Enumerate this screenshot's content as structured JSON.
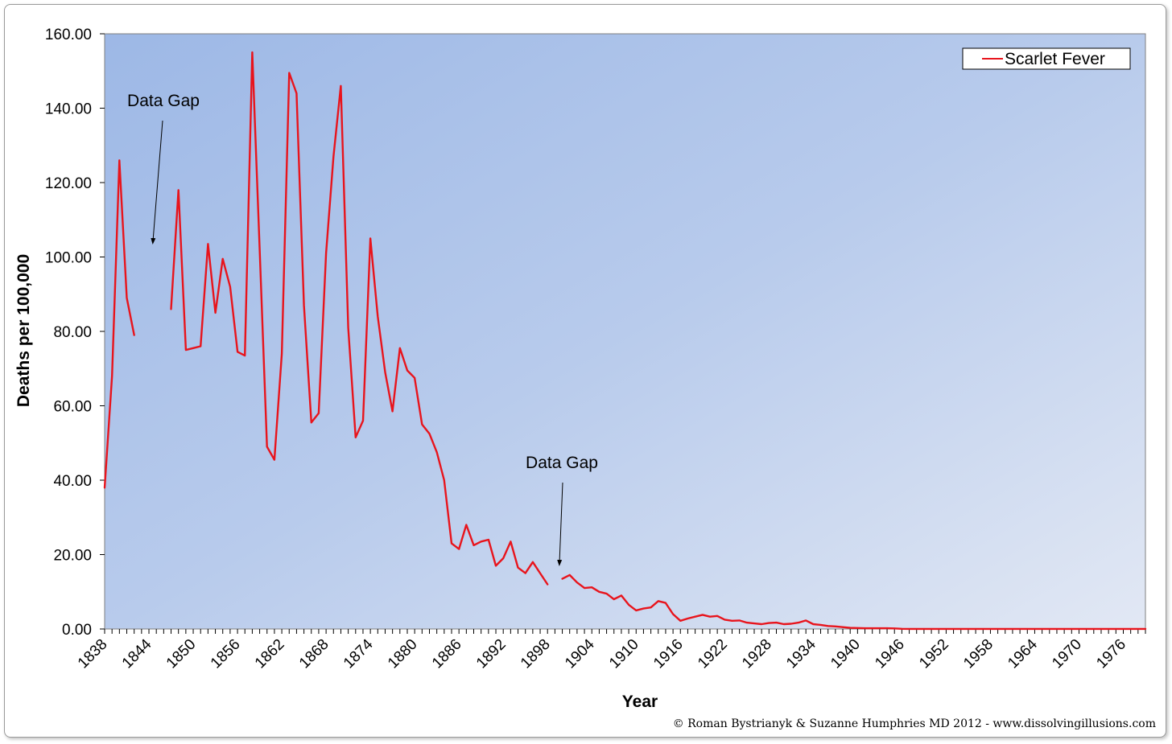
{
  "chart_data": {
    "type": "line",
    "title": "",
    "xlabel": "Year",
    "ylabel": "Deaths per 100,000",
    "ylim": [
      0,
      160
    ],
    "xlim": [
      1838,
      1979
    ],
    "grid": false,
    "legend_position": "top-right",
    "y_ticks": [
      "0.00",
      "20.00",
      "40.00",
      "60.00",
      "80.00",
      "100.00",
      "120.00",
      "140.00",
      "160.00"
    ],
    "x_ticks": [
      "1838",
      "1844",
      "1850",
      "1856",
      "1862",
      "1868",
      "1874",
      "1880",
      "1886",
      "1892",
      "1898",
      "1904",
      "1910",
      "1916",
      "1922",
      "1928",
      "1934",
      "1940",
      "1946",
      "1952",
      "1958",
      "1964",
      "1970",
      "1976"
    ],
    "series": [
      {
        "name": "Scarlet Fever",
        "color": "#e8141c",
        "segments": [
          [
            [
              1838,
              38
            ],
            [
              1839,
              68
            ],
            [
              1840,
              126
            ],
            [
              1841,
              89
            ],
            [
              1842,
              79
            ]
          ],
          [
            [
              1847,
              86
            ],
            [
              1848,
              118
            ],
            [
              1849,
              75
            ],
            [
              1850,
              75.5
            ],
            [
              1851,
              76
            ],
            [
              1852,
              103.5
            ],
            [
              1853,
              85
            ],
            [
              1854,
              99.5
            ],
            [
              1855,
              92
            ],
            [
              1856,
              74.5
            ],
            [
              1857,
              73.5
            ],
            [
              1858,
              155
            ],
            [
              1859,
              102
            ],
            [
              1860,
              49
            ],
            [
              1861,
              45.5
            ],
            [
              1862,
              74
            ],
            [
              1863,
              149.5
            ],
            [
              1864,
              144
            ],
            [
              1865,
              87
            ],
            [
              1866,
              55.5
            ],
            [
              1867,
              58
            ],
            [
              1868,
              101
            ],
            [
              1869,
              127
            ],
            [
              1870,
              146
            ],
            [
              1871,
              81
            ],
            [
              1872,
              51.5
            ],
            [
              1873,
              56
            ],
            [
              1874,
              105
            ],
            [
              1875,
              84
            ],
            [
              1876,
              69
            ],
            [
              1877,
              58.5
            ],
            [
              1878,
              75.5
            ],
            [
              1879,
              69.5
            ],
            [
              1880,
              67.5
            ],
            [
              1881,
              55
            ],
            [
              1882,
              52.5
            ],
            [
              1883,
              47.5
            ],
            [
              1884,
              40
            ],
            [
              1885,
              23
            ],
            [
              1886,
              21.5
            ],
            [
              1887,
              28
            ],
            [
              1888,
              22.5
            ],
            [
              1889,
              23.5
            ],
            [
              1890,
              24
            ],
            [
              1891,
              17
            ],
            [
              1892,
              19
            ],
            [
              1893,
              23.5
            ],
            [
              1894,
              16.5
            ],
            [
              1895,
              15
            ],
            [
              1896,
              18
            ],
            [
              1897,
              15
            ],
            [
              1898,
              12
            ]
          ],
          [
            [
              1900,
              13.5
            ],
            [
              1901,
              14.5
            ],
            [
              1902,
              12.5
            ],
            [
              1903,
              11
            ],
            [
              1904,
              11.2
            ],
            [
              1905,
              10
            ],
            [
              1906,
              9.5
            ],
            [
              1907,
              8
            ],
            [
              1908,
              9
            ],
            [
              1909,
              6.5
            ],
            [
              1910,
              5
            ],
            [
              1911,
              5.5
            ],
            [
              1912,
              5.8
            ],
            [
              1913,
              7.5
            ],
            [
              1914,
              7
            ],
            [
              1915,
              4
            ],
            [
              1916,
              2.2
            ],
            [
              1917,
              2.8
            ],
            [
              1918,
              3.3
            ],
            [
              1919,
              3.8
            ],
            [
              1920,
              3.3
            ],
            [
              1921,
              3.5
            ],
            [
              1922,
              2.5
            ],
            [
              1923,
              2.2
            ],
            [
              1924,
              2.3
            ],
            [
              1925,
              1.7
            ],
            [
              1926,
              1.5
            ],
            [
              1927,
              1.3
            ],
            [
              1928,
              1.6
            ],
            [
              1929,
              1.7
            ],
            [
              1930,
              1.3
            ],
            [
              1931,
              1.4
            ],
            [
              1932,
              1.7
            ],
            [
              1933,
              2.3
            ],
            [
              1934,
              1.3
            ],
            [
              1935,
              1.1
            ],
            [
              1936,
              0.8
            ],
            [
              1937,
              0.7
            ],
            [
              1938,
              0.5
            ],
            [
              1939,
              0.3
            ],
            [
              1940,
              0.25
            ],
            [
              1941,
              0.2
            ],
            [
              1942,
              0.2
            ],
            [
              1943,
              0.2
            ],
            [
              1944,
              0.2
            ],
            [
              1945,
              0.15
            ],
            [
              1946,
              0.05
            ],
            [
              1947,
              0.03
            ],
            [
              1948,
              0.02
            ],
            [
              1949,
              0.02
            ],
            [
              1950,
              0.02
            ],
            [
              1955,
              0.02
            ],
            [
              1960,
              0.02
            ],
            [
              1965,
              0.02
            ],
            [
              1970,
              0.02
            ],
            [
              1975,
              0.02
            ],
            [
              1979,
              0.02
            ]
          ]
        ]
      }
    ],
    "annotations": [
      {
        "text": "Data Gap",
        "points_to_year": 1844
      },
      {
        "text": "Data Gap",
        "points_to_year": 1899
      }
    ]
  },
  "legend": {
    "label": "Scarlet Fever"
  },
  "credit": "© Roman Bystrianyk & Suzanne Humphries MD 2012 - www.dissolvingillusions.com"
}
